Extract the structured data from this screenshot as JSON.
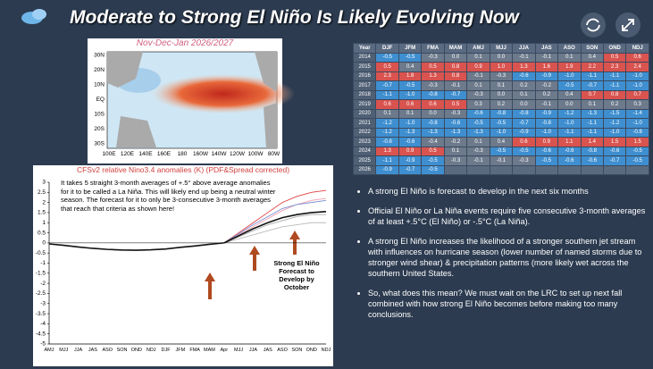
{
  "header": {
    "title": "Moderate to Strong El Niño Is Likely Evolving Now"
  },
  "map": {
    "title": "Nov-Dec-Jan 2026/2027",
    "lat_labels": [
      "30N",
      "20N",
      "10N",
      "EQ",
      "10S",
      "20S",
      "30S"
    ],
    "lon_labels": [
      "100E",
      "120E",
      "140E",
      "160E",
      "180",
      "160W",
      "140W",
      "120W",
      "100W",
      "80W"
    ]
  },
  "table": {
    "columns": [
      "Year",
      "DJF",
      "JFM",
      "FMA",
      "MAM",
      "AMJ",
      "MJJ",
      "JJA",
      "JAS",
      "ASO",
      "SON",
      "OND",
      "NDJ"
    ],
    "rows": [
      [
        "2014",
        "-0.5",
        "-0.5",
        "-0.3",
        "0.0",
        "0.1",
        "0.0",
        "-0.1",
        "-0.1",
        "0.1",
        "0.4",
        "0.5",
        "0.6"
      ],
      [
        "2015",
        "0.5",
        "0.4",
        "0.5",
        "0.8",
        "0.9",
        "1.0",
        "1.3",
        "1.6",
        "1.9",
        "2.2",
        "2.3",
        "2.4"
      ],
      [
        "2016",
        "2.3",
        "1.8",
        "1.3",
        "0.8",
        "-0.1",
        "-0.3",
        "-0.6",
        "-0.9",
        "-1.0",
        "-1.1",
        "-1.1",
        "-1.0"
      ],
      [
        "2017",
        "-0.7",
        "-0.5",
        "-0.3",
        "-0.1",
        "0.1",
        "0.1",
        "0.2",
        "-0.2",
        "-0.5",
        "-0.7",
        "-1.1",
        "-1.0"
      ],
      [
        "2018",
        "-1.1",
        "-1.0",
        "-0.8",
        "-0.7",
        "-0.3",
        "0.0",
        "0.1",
        "0.2",
        "0.4",
        "0.7",
        "0.8",
        "0.7"
      ],
      [
        "2019",
        "0.6",
        "0.6",
        "0.6",
        "0.5",
        "0.3",
        "0.2",
        "0.0",
        "-0.1",
        "0.0",
        "0.1",
        "0.2",
        "0.3"
      ],
      [
        "2020",
        "0.1",
        "0.1",
        "0.0",
        "-0.3",
        "-0.6",
        "-0.8",
        "-0.8",
        "-0.9",
        "-1.2",
        "-1.3",
        "-1.5",
        "-1.4"
      ],
      [
        "2021",
        "-1.2",
        "-1.0",
        "-0.8",
        "-0.6",
        "-0.5",
        "-0.5",
        "-0.7",
        "-0.8",
        "-1.0",
        "-1.1",
        "-1.2",
        "-1.0"
      ],
      [
        "2022",
        "-1.2",
        "-1.3",
        "-1.3",
        "-1.3",
        "-1.3",
        "-1.0",
        "-0.9",
        "-1.0",
        "-1.1",
        "-1.1",
        "-1.0",
        "-0.8"
      ],
      [
        "2023",
        "-0.8",
        "-0.6",
        "-0.4",
        "-0.2",
        "0.1",
        "0.4",
        "0.6",
        "0.9",
        "1.1",
        "1.4",
        "1.5",
        "1.5"
      ],
      [
        "2024",
        "1.3",
        "0.9",
        "0.5",
        "0.1",
        "-0.3",
        "-0.5",
        "-0.5",
        "-0.6",
        "-0.6",
        "-0.8",
        "-0.6",
        "-0.5"
      ],
      [
        "2025",
        "-1.1",
        "-0.9",
        "-0.5",
        "-0.3",
        "-0.1",
        "-0.1",
        "-0.3",
        "-0.5",
        "-0.6",
        "-0.6",
        "-0.7",
        "-0.5"
      ],
      [
        "2026",
        "-0.9",
        "-0.7",
        "-0.5"
      ]
    ]
  },
  "chart_data": {
    "type": "line",
    "title": "CFSv2 relative Nino3.4 anomalies (K) (PDF&Spread corrected)",
    "categories": [
      "AMJ",
      "MJJ",
      "JJA",
      "JAS",
      "ASO",
      "SON",
      "OND",
      "NDJ",
      "DJF",
      "JFM",
      "FMA",
      "MAM",
      "Apr",
      "MJJ",
      "JJA",
      "JAS",
      "ASO",
      "SON",
      "OND",
      "NDJ"
    ],
    "ylim": [
      -5,
      3
    ],
    "yticks": [
      3,
      2.5,
      2,
      1.5,
      1,
      0.5,
      0,
      -0.5,
      -1,
      -1.5,
      -2,
      -2.5,
      -3,
      -3.5,
      -4,
      -4.5,
      -5
    ],
    "series": [
      {
        "color": "#111111",
        "values": [
          -0.05,
          -0.12,
          -0.2,
          -0.27,
          -0.32,
          -0.35,
          -0.36,
          -0.34,
          -0.3,
          -0.22,
          -0.15,
          -0.07,
          0.0,
          null,
          null,
          null,
          null,
          null,
          null,
          null
        ]
      },
      {
        "color": "#e04040",
        "values": [
          null,
          null,
          null,
          null,
          null,
          null,
          null,
          null,
          null,
          null,
          null,
          null,
          0.0,
          0.5,
          1.0,
          1.5,
          2.0,
          2.3,
          2.5,
          2.6
        ]
      },
      {
        "color": "#f0a0b0",
        "values": [
          null,
          null,
          null,
          null,
          null,
          null,
          null,
          null,
          null,
          null,
          null,
          null,
          0.0,
          0.4,
          0.8,
          1.2,
          1.6,
          1.9,
          2.1,
          2.2
        ]
      },
      {
        "color": "#7a8fd0",
        "values": [
          null,
          null,
          null,
          null,
          null,
          null,
          null,
          null,
          null,
          null,
          null,
          null,
          0.0,
          0.45,
          0.9,
          1.3,
          1.7,
          1.9,
          2.0,
          2.1
        ]
      },
      {
        "color": "#aaaaaa",
        "values": [
          null,
          null,
          null,
          null,
          null,
          null,
          null,
          null,
          null,
          null,
          null,
          null,
          0.0,
          0.3,
          0.6,
          0.9,
          1.1,
          1.3,
          1.4,
          1.4
        ]
      },
      {
        "color": "#bbbbbb",
        "values": [
          null,
          null,
          null,
          null,
          null,
          null,
          null,
          null,
          null,
          null,
          null,
          null,
          0.0,
          0.2,
          0.4,
          0.6,
          0.8,
          0.9,
          1.0,
          1.0
        ]
      },
      {
        "color": "#111111",
        "values": [
          null,
          null,
          null,
          null,
          null,
          null,
          null,
          null,
          null,
          null,
          null,
          null,
          0.0,
          0.35,
          0.7,
          1.0,
          1.25,
          1.4,
          1.5,
          1.55
        ]
      }
    ],
    "annotations": [
      "It takes 5 straight 3-month averages of +.5° above average  anomalies for it to be called a La Niña.  This will likely end up being a neutral winter season. The forecast for it to only be 3-consecutive 3-month averages that reach that criteria as shown here!",
      "Strong El Niño Forecast to Develop by October"
    ]
  },
  "bullets": [
    "A strong El Niño is forecast to develop in the next six months",
    "Official El Niño or La Niña events require five consecutive 3-month averages of at least +.5°C (El Niño) or -.5°C (La Niña).",
    "A strong El Niño increases the likelihood of a stronger southern jet stream with influences on hurricane season (lower number of named storms due to stronger wind shear) & precipitation patterns (more likely wet across the southern United States.",
    "So, what does this mean?  We must wait on the LRC to set up next fall combined with how strong El Niño becomes before making too many conclusions."
  ]
}
